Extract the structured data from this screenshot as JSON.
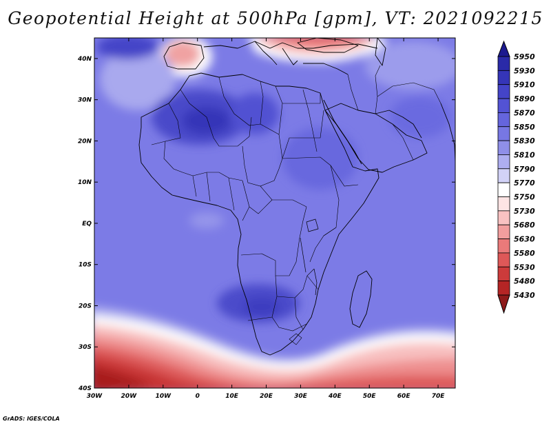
{
  "title": "Geopotential Height at 500hPa [gpm], VT: 2021092215",
  "credit": "GrADS: IGES/COLA",
  "map": {
    "lon_range": [
      -30,
      75
    ],
    "lat_range": [
      -40,
      45
    ],
    "lon_ticks": [
      "30W",
      "20W",
      "10W",
      "0",
      "10E",
      "20E",
      "30E",
      "40E",
      "50E",
      "60E",
      "70E"
    ],
    "lat_ticks": [
      "40S",
      "30S",
      "20S",
      "10S",
      "EQ",
      "10N",
      "20N",
      "30N",
      "40N"
    ]
  },
  "colorbar": {
    "levels": [
      "5950",
      "5930",
      "5910",
      "5890",
      "5870",
      "5850",
      "5830",
      "5810",
      "5790",
      "5770",
      "5750",
      "5730",
      "5680",
      "5630",
      "5580",
      "5530",
      "5480",
      "5430"
    ],
    "colors": [
      "#1c1a8f",
      "#2a2aa8",
      "#3535b8",
      "#4444c8",
      "#5353d4",
      "#6565dd",
      "#7777e3",
      "#8f8fe8",
      "#aeaef0",
      "#d2d2f7",
      "#ffffff",
      "#fde4e4",
      "#f9c2c2",
      "#f29e9e",
      "#ea7a7a",
      "#de5858",
      "#cc3b3b",
      "#b52525",
      "#8e1a1a"
    ]
  }
}
